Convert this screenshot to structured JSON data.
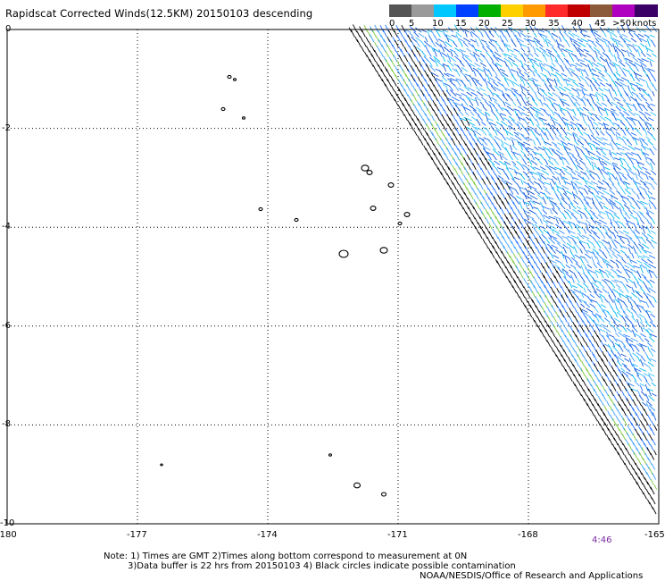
{
  "title": "Rapidscat Corrected Winds(12.5KM) 20150103 descending",
  "scale": {
    "labels": [
      "0",
      "5",
      "10",
      "15",
      "20",
      "25",
      "30",
      "35",
      "40",
      "45",
      ">50"
    ],
    "unit": "knots",
    "colors": [
      "#555555",
      "#9a9a9a",
      "#00c8ff",
      "#0040ff",
      "#00b000",
      "#ffd000",
      "#ff9a00",
      "#ff2a2a",
      "#c00000",
      "#8a5a3a",
      "#b000c0",
      "#3a0066"
    ]
  },
  "map": {
    "lat_labels": [
      "0",
      "-2",
      "-4",
      "-6",
      "-8",
      "-10"
    ],
    "lon_labels": [
      "-180",
      "-177",
      "-174",
      "-171",
      "-168",
      "-165"
    ],
    "lon_range": [
      -180,
      -165
    ],
    "lat_range": [
      0,
      -10
    ]
  },
  "time_label": "4:46",
  "notes": {
    "line1": "Note: 1) Times are GMT 2)Times along bottom correspond to measurement at 0N",
    "line2": "3)Data buffer is 22 hrs from 20150103 4) Black circles indicate possible contamination",
    "line3": "NOAA/NESDIS/Office of Research and Applications"
  }
}
